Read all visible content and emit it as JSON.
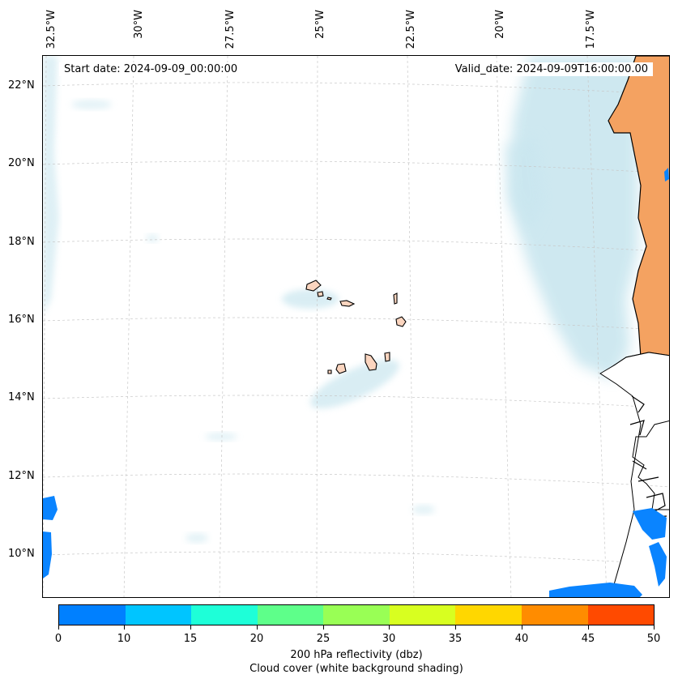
{
  "map": {
    "start_date": "Start date: 2024-09-09_00:00:00",
    "valid_date": "Valid_date: 2024-09-09T16:00:00.00",
    "longitude_labels": [
      "32.5°W",
      "30°W",
      "27.5°W",
      "25°W",
      "22.5°W",
      "20°W",
      "17.5°W"
    ],
    "latitude_labels": [
      "22°N",
      "20°N",
      "18°N",
      "16°N",
      "14°N",
      "12°N",
      "10°N"
    ],
    "colors": {
      "land_africa": "#f4a261",
      "islands": "#fbd5bf",
      "cloud": "#c9e6ef",
      "coast": "#000000",
      "reflectivity_low": "#0a84ff"
    }
  },
  "colorbar": {
    "ticks": [
      "0",
      "10",
      "15",
      "20",
      "25",
      "30",
      "35",
      "40",
      "45",
      "50"
    ],
    "colors": [
      "#0080ff",
      "#00c5ff",
      "#1effd8",
      "#5eff8a",
      "#99ff55",
      "#d8ff20",
      "#ffd700",
      "#ff8c00",
      "#ff4a00"
    ],
    "label_line1": "200 hPa reflectivity (dbz)",
    "label_line2": "Cloud cover (white background shading)"
  }
}
